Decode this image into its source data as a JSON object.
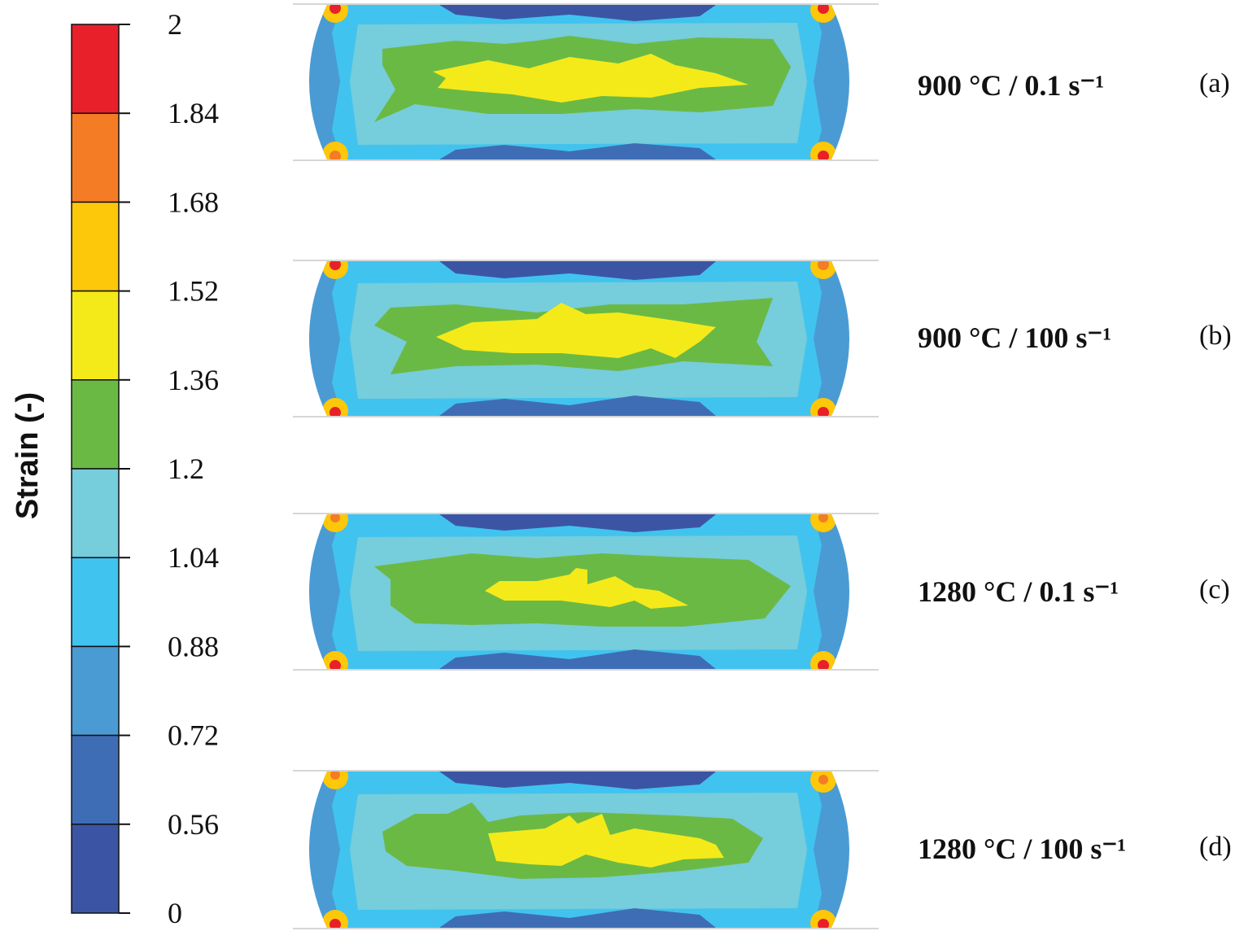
{
  "legend": {
    "title": "Strain (-)",
    "ticks": [
      "2",
      "1.84",
      "1.68",
      "1.52",
      "1.36",
      "1.2",
      "1.04",
      "0.88",
      "0.72",
      "0.56",
      "0"
    ],
    "bands": [
      {
        "color": "#e8202a"
      },
      {
        "color": "#f47c25"
      },
      {
        "color": "#fdc70a"
      },
      {
        "color": "#f4ea1a"
      },
      {
        "color": "#6bb945"
      },
      {
        "color": "#76cddb"
      },
      {
        "color": "#41c3ef"
      },
      {
        "color": "#4a9bd4"
      },
      {
        "color": "#3f6db5"
      },
      {
        "color": "#3b55a4"
      }
    ]
  },
  "panels": [
    {
      "id": "a",
      "condition": "900 °C / 0.1 s⁻¹",
      "tag": "(a)"
    },
    {
      "id": "b",
      "condition": "900 °C / 100 s⁻¹",
      "tag": "(b)"
    },
    {
      "id": "c",
      "condition": "1280 °C / 0.1 s⁻¹",
      "tag": "(c)"
    },
    {
      "id": "d",
      "condition": "1280 °C / 100 s⁻¹",
      "tag": "(d)"
    }
  ]
}
